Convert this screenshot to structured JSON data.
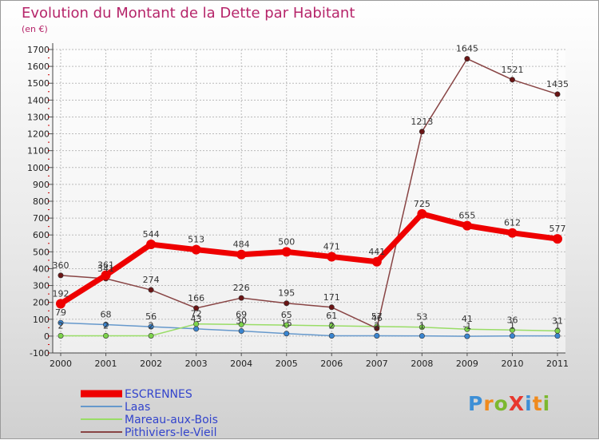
{
  "title": "Evolution du Montant de la Dette par Habitant",
  "subtitle": "(en €)",
  "brand": {
    "text": "ProXiti",
    "colors": [
      "#3d8fd6",
      "#f08a1c",
      "#7cb82f",
      "#e8382d",
      "#3d8fd6",
      "#f08a1c",
      "#7cb82f"
    ]
  },
  "chart_data": {
    "type": "line",
    "x": [
      "2000",
      "2001",
      "2002",
      "2003",
      "2004",
      "2005",
      "2006",
      "2007",
      "2008",
      "2009",
      "2010",
      "2011"
    ],
    "ylim": [
      -100,
      1700
    ],
    "yticks": [
      "-100",
      "0",
      "100",
      "200",
      "300",
      "400",
      "500",
      "600",
      "700",
      "800",
      "900",
      "1000",
      "1100",
      "1200",
      "1300",
      "1400",
      "1500",
      "1600",
      "1700"
    ],
    "grid": true,
    "legend_position": "bottom-left",
    "series": [
      {
        "name": "ESCRENNES",
        "color": "#ee0000",
        "marker": "#ee0000",
        "width": 7,
        "values": [
          192,
          361,
          544,
          513,
          484,
          500,
          471,
          441,
          725,
          655,
          612,
          577
        ],
        "labels": [
          "192",
          "361",
          "544",
          "513",
          "484",
          "500",
          "471",
          "441",
          "725",
          "655",
          "612",
          "577"
        ]
      },
      {
        "name": "Laas",
        "color": "#6699cc",
        "marker": "#3a85d0",
        "width": 1.5,
        "values": [
          79,
          68,
          56,
          43,
          30,
          15,
          2,
          2,
          1,
          -1,
          1,
          1
        ],
        "labels": [
          "79",
          "68",
          "56",
          "43",
          "30",
          "15",
          "2",
          "2",
          "1",
          "-1",
          "1",
          "1"
        ]
      },
      {
        "name": "Mareau-aux-Bois",
        "color": "#99dd66",
        "marker": "#7dd34b",
        "width": 1.5,
        "values": [
          2,
          2,
          2,
          72,
          69,
          65,
          61,
          57,
          53,
          41,
          36,
          31
        ],
        "labels": [
          "2",
          "2",
          "2",
          "72",
          "69",
          "65",
          "61",
          "57",
          "53",
          "41",
          "36",
          "31"
        ]
      },
      {
        "name": "Pithiviers-le-Vieil",
        "color": "#884444",
        "marker": "#6a1515",
        "width": 1.5,
        "values": [
          360,
          341,
          274,
          166,
          226,
          195,
          171,
          46,
          1213,
          1645,
          1521,
          1435
        ],
        "labels": [
          "360",
          "341",
          "274",
          "166",
          "226",
          "195",
          "171",
          "46",
          "1213",
          "1645",
          "1521",
          "1435"
        ]
      }
    ]
  }
}
